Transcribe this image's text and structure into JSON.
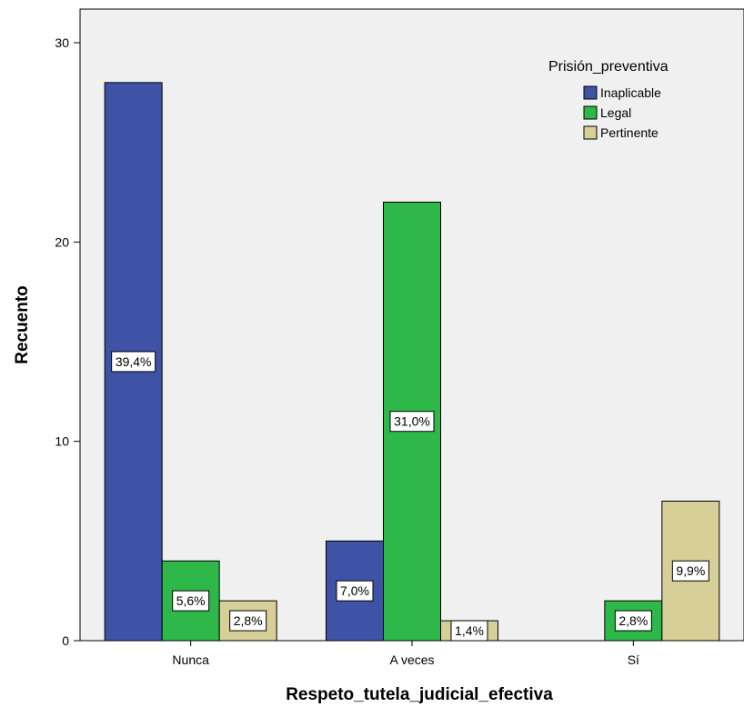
{
  "chart_data": {
    "type": "bar",
    "categories": [
      "Nunca",
      "A veces",
      "Sí"
    ],
    "series": [
      {
        "name": "Inaplicable",
        "color": "#3f53a6",
        "values": [
          28,
          5,
          0
        ],
        "labels": [
          "39,4%",
          "7,0%",
          ""
        ]
      },
      {
        "name": "Legal",
        "color": "#2eb84a",
        "values": [
          4,
          22,
          2
        ],
        "labels": [
          "5,6%",
          "31,0%",
          "2,8%"
        ]
      },
      {
        "name": "Pertinente",
        "color": "#d6cf97",
        "values": [
          2,
          1,
          7
        ],
        "labels": [
          "2,8%",
          "1,4%",
          "9,9%"
        ]
      }
    ],
    "xlabel": "Respeto_tutela_judicial_efectiva",
    "ylabel": "Recuento",
    "ylim": [
      0,
      30
    ],
    "yticks": [
      0,
      10,
      20,
      30
    ],
    "legend_title": "Prisión_preventiva",
    "legend_position": "top-right",
    "grid": false,
    "plot_background": "#f0f0f0"
  }
}
